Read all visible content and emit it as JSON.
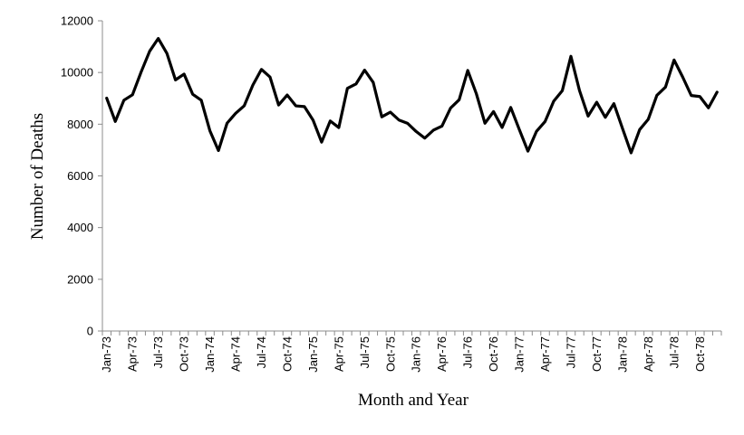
{
  "chart_data": {
    "type": "line",
    "title": "",
    "xlabel": "Month and Year",
    "ylabel": "Number of Deaths",
    "ylim": [
      0,
      12000
    ],
    "yticks": [
      0,
      2000,
      4000,
      6000,
      8000,
      10000,
      12000
    ],
    "grid": false,
    "legend": "none",
    "x_tick_labels": [
      "Jan-73",
      "Apr-73",
      "Jul-73",
      "Oct-73",
      "Jan-74",
      "Apr-74",
      "Jul-74",
      "Oct-74",
      "Jan-75",
      "Apr-75",
      "Jul-75",
      "Oct-75",
      "Jan-76",
      "Apr-76",
      "Jul-76",
      "Oct-76",
      "Jan-77",
      "Apr-77",
      "Jul-77",
      "Oct-77",
      "Jan-78",
      "Apr-78",
      "Jul-78",
      "Oct-78"
    ],
    "x": [
      "Jan-73",
      "Feb-73",
      "Mar-73",
      "Apr-73",
      "May-73",
      "Jun-73",
      "Jul-73",
      "Aug-73",
      "Sep-73",
      "Oct-73",
      "Nov-73",
      "Dec-73",
      "Jan-74",
      "Feb-74",
      "Mar-74",
      "Apr-74",
      "May-74",
      "Jun-74",
      "Jul-74",
      "Aug-74",
      "Sep-74",
      "Oct-74",
      "Nov-74",
      "Dec-74",
      "Jan-75",
      "Feb-75",
      "Mar-75",
      "Apr-75",
      "May-75",
      "Jun-75",
      "Jul-75",
      "Aug-75",
      "Sep-75",
      "Oct-75",
      "Nov-75",
      "Dec-75",
      "Jan-76",
      "Feb-76",
      "Mar-76",
      "Apr-76",
      "May-76",
      "Jun-76",
      "Jul-76",
      "Aug-76",
      "Sep-76",
      "Oct-76",
      "Nov-76",
      "Dec-76",
      "Jan-77",
      "Feb-77",
      "Mar-77",
      "Apr-77",
      "May-77",
      "Jun-77",
      "Jul-77",
      "Aug-77",
      "Sep-77",
      "Oct-77",
      "Nov-77",
      "Dec-77",
      "Jan-78",
      "Feb-78",
      "Mar-78",
      "Apr-78",
      "May-78",
      "Jun-78",
      "Jul-78",
      "Aug-78",
      "Sep-78",
      "Oct-78",
      "Nov-78",
      "Dec-78"
    ],
    "series": [
      {
        "values": [
          9007,
          8106,
          8928,
          9137,
          10017,
          10826,
          11317,
          10744,
          9713,
          9938,
          9161,
          8927,
          7750,
          6981,
          8038,
          8422,
          8714,
          9512,
          10120,
          9823,
          8743,
          9129,
          8710,
          8680,
          8162,
          7306,
          8124,
          7870,
          9387,
          9556,
          10093,
          9620,
          8285,
          8466,
          8160,
          8034,
          7717,
          7461,
          7767,
          7925,
          8623,
          8945,
          10078,
          9179,
          8037,
          8488,
          7874,
          8647,
          7792,
          6957,
          7726,
          8106,
          8890,
          9299,
          10625,
          9302,
          8314,
          8850,
          8265,
          8796,
          7836,
          6892,
          7791,
          8192,
          9115,
          9434,
          10484,
          9827,
          9110,
          9070,
          8633,
          9240
        ]
      }
    ]
  }
}
